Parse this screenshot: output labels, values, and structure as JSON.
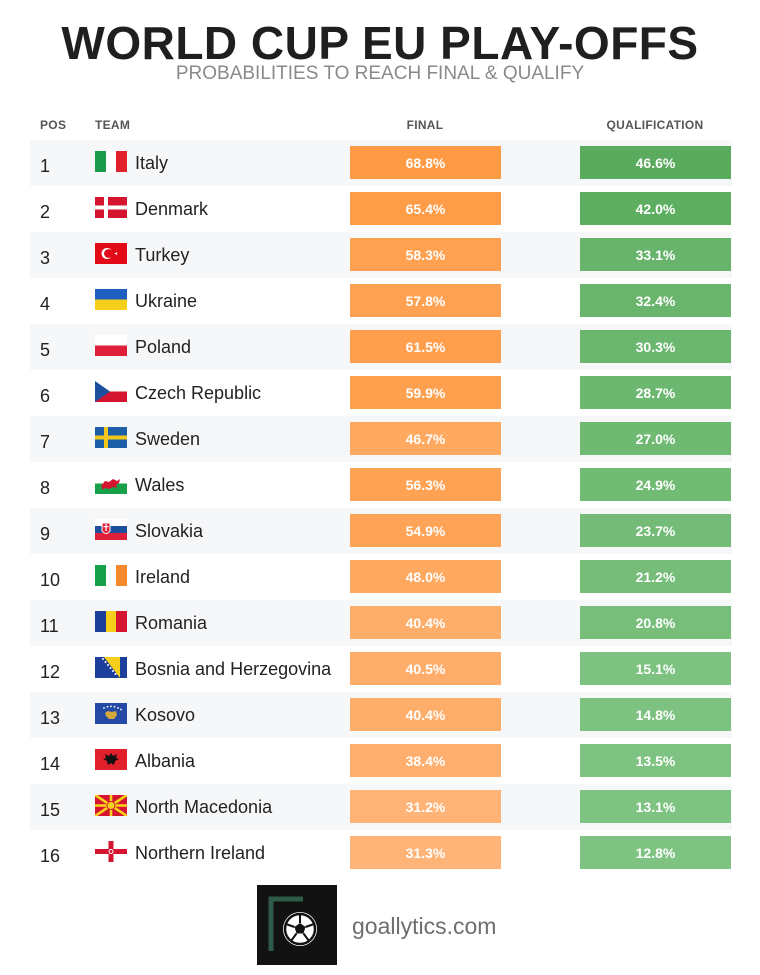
{
  "title": "WORLD CUP EU PLAY-OFFS",
  "subtitle": "PROBABILITIES TO REACH FINAL & QUALIFY",
  "headers": {
    "pos": "POS",
    "team": "TEAM",
    "final": "FINAL",
    "qualification": "QUALIFICATION"
  },
  "colors": {
    "final_dark": "#ff9a44",
    "final_light": "#ffb478",
    "qual_dark": "#5aab5e",
    "qual_light": "#80c483",
    "row_alt": "#f6f7f9"
  },
  "chart_data": {
    "type": "table",
    "columns": [
      "POS",
      "TEAM",
      "FINAL",
      "QUALIFICATION"
    ],
    "rows": [
      {
        "pos": "1",
        "team": "Italy",
        "flag": "italy-flag-icon",
        "final": "68.8%",
        "final_value": 68.8,
        "qual": "46.6%",
        "qual_value": 46.6
      },
      {
        "pos": "2",
        "team": "Denmark",
        "flag": "denmark-flag-icon",
        "final": "65.4%",
        "final_value": 65.4,
        "qual": "42.0%",
        "qual_value": 42.0
      },
      {
        "pos": "3",
        "team": "Turkey",
        "flag": "turkey-flag-icon",
        "final": "58.3%",
        "final_value": 58.3,
        "qual": "33.1%",
        "qual_value": 33.1
      },
      {
        "pos": "4",
        "team": "Ukraine",
        "flag": "ukraine-flag-icon",
        "final": "57.8%",
        "final_value": 57.8,
        "qual": "32.4%",
        "qual_value": 32.4
      },
      {
        "pos": "5",
        "team": "Poland",
        "flag": "poland-flag-icon",
        "final": "61.5%",
        "final_value": 61.5,
        "qual": "30.3%",
        "qual_value": 30.3
      },
      {
        "pos": "6",
        "team": "Czech Republic",
        "flag": "czech-republic-flag-icon",
        "final": "59.9%",
        "final_value": 59.9,
        "qual": "28.7%",
        "qual_value": 28.7
      },
      {
        "pos": "7",
        "team": "Sweden",
        "flag": "sweden-flag-icon",
        "final": "46.7%",
        "final_value": 46.7,
        "qual": "27.0%",
        "qual_value": 27.0
      },
      {
        "pos": "8",
        "team": "Wales",
        "flag": "wales-flag-icon",
        "final": "56.3%",
        "final_value": 56.3,
        "qual": "24.9%",
        "qual_value": 24.9
      },
      {
        "pos": "9",
        "team": "Slovakia",
        "flag": "slovakia-flag-icon",
        "final": "54.9%",
        "final_value": 54.9,
        "qual": "23.7%",
        "qual_value": 23.7
      },
      {
        "pos": "10",
        "team": "Ireland",
        "flag": "ireland-flag-icon",
        "final": "48.0%",
        "final_value": 48.0,
        "qual": "21.2%",
        "qual_value": 21.2
      },
      {
        "pos": "11",
        "team": "Romania",
        "flag": "romania-flag-icon",
        "final": "40.4%",
        "final_value": 40.4,
        "qual": "20.8%",
        "qual_value": 20.8
      },
      {
        "pos": "12",
        "team": "Bosnia and Herzegovina",
        "flag": "bosnia-flag-icon",
        "final": "40.5%",
        "final_value": 40.5,
        "qual": "15.1%",
        "qual_value": 15.1
      },
      {
        "pos": "13",
        "team": "Kosovo",
        "flag": "kosovo-flag-icon",
        "final": "40.4%",
        "final_value": 40.4,
        "qual": "14.8%",
        "qual_value": 14.8
      },
      {
        "pos": "14",
        "team": "Albania",
        "flag": "albania-flag-icon",
        "final": "38.4%",
        "final_value": 38.4,
        "qual": "13.5%",
        "qual_value": 13.5
      },
      {
        "pos": "15",
        "team": "North Macedonia",
        "flag": "north-macedonia-flag-icon",
        "final": "31.2%",
        "final_value": 31.2,
        "qual": "13.1%",
        "qual_value": 13.1
      },
      {
        "pos": "16",
        "team": "Northern Ireland",
        "flag": "northern-ireland-flag-icon",
        "final": "31.3%",
        "final_value": 31.3,
        "qual": "12.8%",
        "qual_value": 12.8
      }
    ]
  },
  "footer": {
    "logo_icon": "soccer-ball-icon",
    "site": "goallytics.com"
  }
}
